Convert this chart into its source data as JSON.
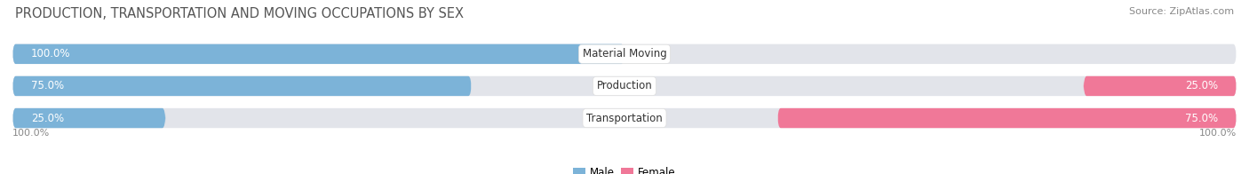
{
  "title": "PRODUCTION, TRANSPORTATION AND MOVING OCCUPATIONS BY SEX",
  "source": "Source: ZipAtlas.com",
  "categories": [
    "Material Moving",
    "Production",
    "Transportation"
  ],
  "male_pct": [
    100.0,
    75.0,
    25.0
  ],
  "female_pct": [
    0.0,
    25.0,
    75.0
  ],
  "male_color": "#7cb3d8",
  "female_color": "#f07898",
  "male_light_color": "#c5d9ec",
  "female_light_color": "#f5c0cc",
  "bar_bg_color": "#e2e4ea",
  "background_color": "#ffffff",
  "bar_height": 0.62,
  "title_fontsize": 10.5,
  "label_fontsize": 8.5,
  "cat_fontsize": 8.5,
  "source_fontsize": 8,
  "legend_fontsize": 8.5,
  "axis_label_fontsize": 8,
  "pct_text_color_white": "#ffffff",
  "pct_text_color_dark": "#888888",
  "cat_text_color": "#333333",
  "title_color": "#555555",
  "source_color": "#888888",
  "axis_color": "#888888"
}
